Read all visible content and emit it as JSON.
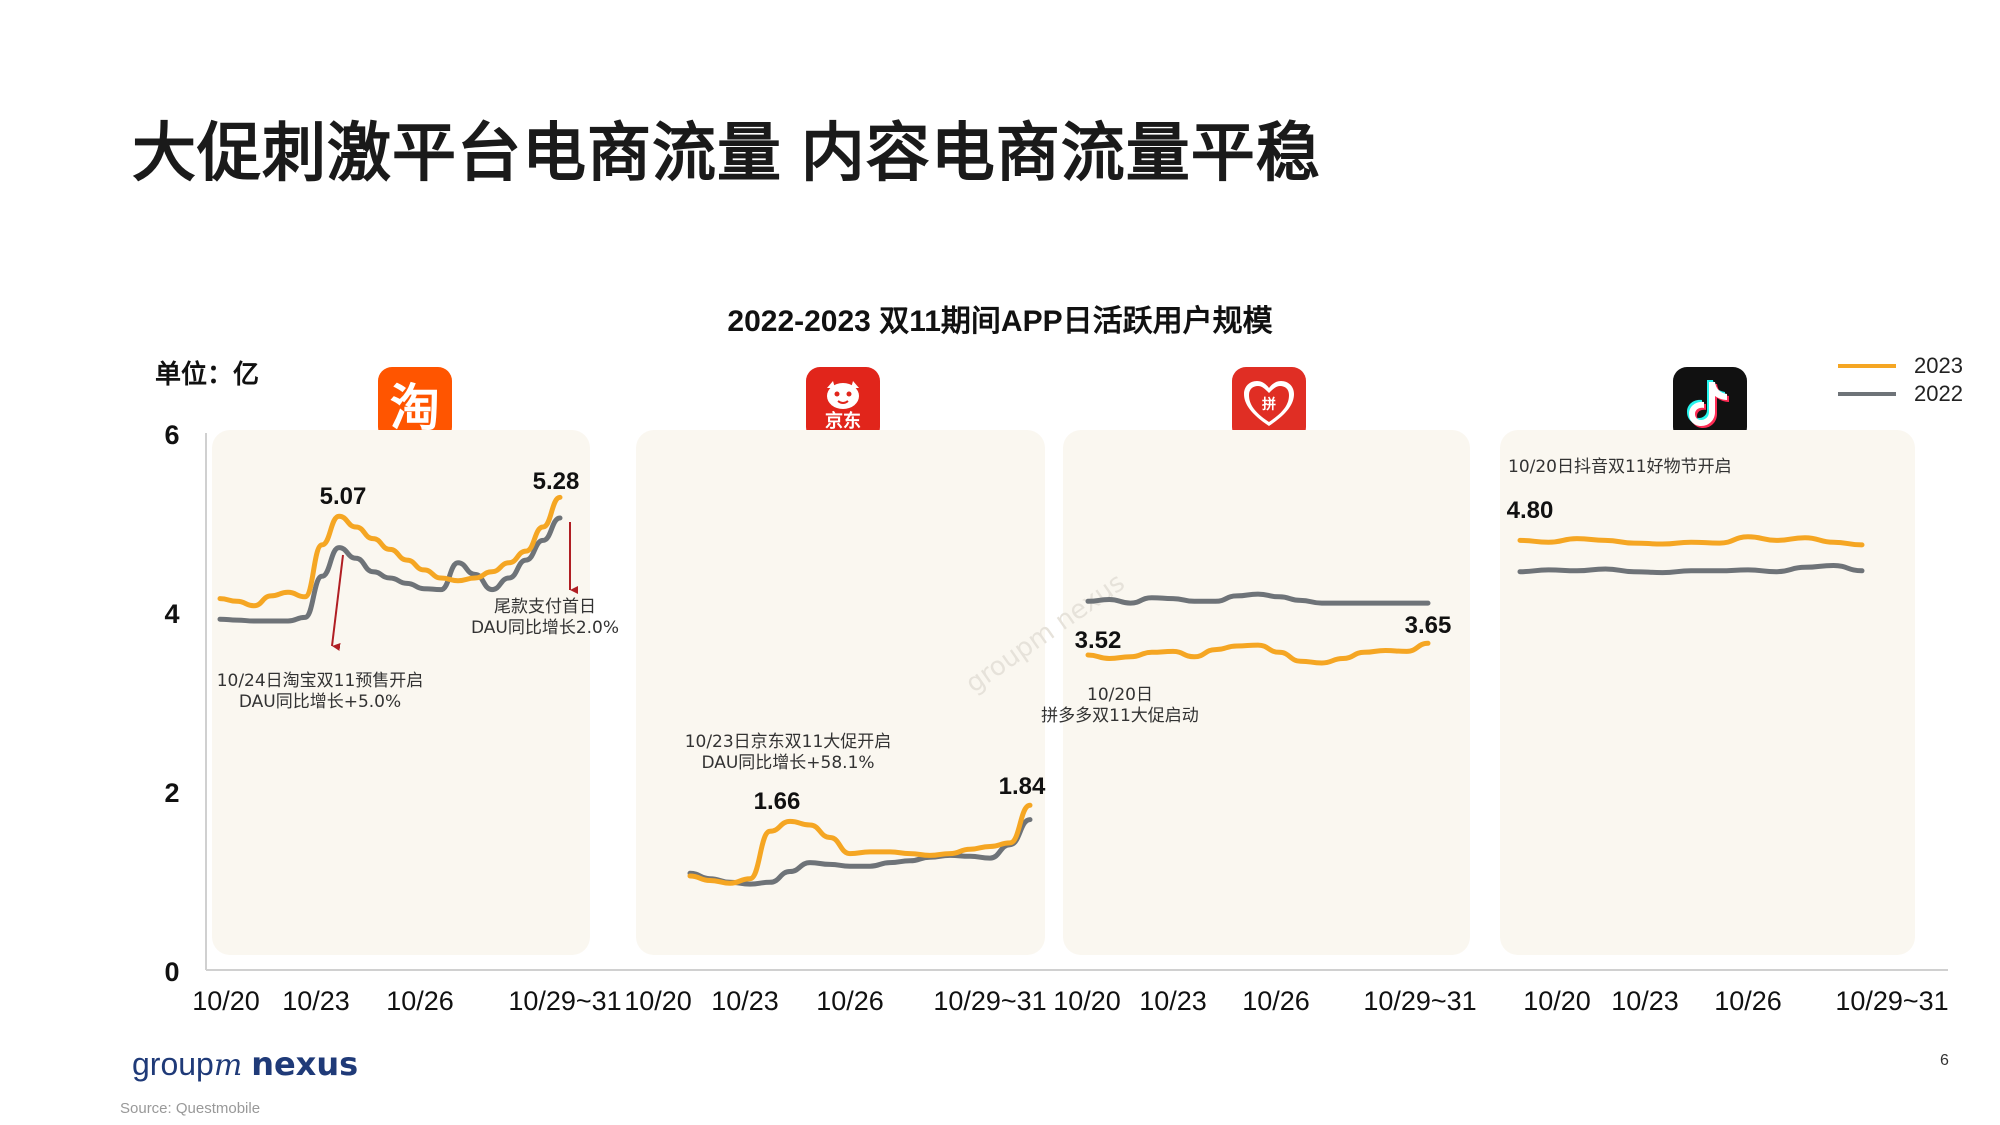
{
  "title": "大促刺激平台电商流量 内容电商流量平稳",
  "chart_title": "2022-2023 双11期间APP日活跃用户规模",
  "unit": "单位：亿",
  "legend": [
    {
      "label": "2023",
      "color": "#F5A623"
    },
    {
      "label": "2022",
      "color": "#6E7378"
    }
  ],
  "footer": {
    "logo_group": "group",
    "logo_m": "m",
    "logo_nexus": "nexus",
    "source": "Source: Questmobile",
    "page_number": "6"
  },
  "icons": [
    {
      "name": "taobao-icon",
      "glyph": "淘",
      "color": "#FF5500"
    },
    {
      "name": "jd-icon",
      "glyph": "京东",
      "color": "#E1251B"
    },
    {
      "name": "pinduoduo-icon",
      "glyph": "拼",
      "color": "#E02E24"
    },
    {
      "name": "douyin-icon",
      "glyph": "♪",
      "color": "#111111"
    }
  ],
  "chart_data": {
    "type": "line",
    "ylim": [
      0,
      6
    ],
    "yticks": [
      0,
      2,
      4,
      6
    ],
    "grid": false,
    "legend_position": "top-right",
    "panels": [
      {
        "app": "淘宝",
        "xticks": [
          "10/20",
          "10/23",
          "10/26",
          "10/29~31"
        ],
        "series": [
          {
            "name": "2023",
            "values": [
              4.15,
              4.12,
              4.07,
              4.18,
              4.22,
              4.17,
              4.75,
              5.07,
              4.95,
              4.82,
              4.7,
              4.58,
              4.47,
              4.38,
              4.35,
              4.38,
              4.45,
              4.55,
              4.68,
              4.95,
              5.28
            ]
          },
          {
            "name": "2022",
            "values": [
              3.92,
              3.91,
              3.9,
              3.9,
              3.9,
              3.94,
              4.4,
              4.72,
              4.6,
              4.45,
              4.38,
              4.32,
              4.26,
              4.25,
              4.55,
              4.42,
              4.25,
              4.38,
              4.58,
              4.8,
              5.05
            ]
          }
        ],
        "labels": [
          {
            "text": "5.07"
          },
          {
            "text": "5.28"
          }
        ],
        "annotations": [
          {
            "text": [
              "10/24日淘宝双11预售开启",
              "DAU同比增长+5.0%"
            ]
          },
          {
            "text": [
              "尾款支付首日",
              "DAU同比增长2.0%"
            ]
          }
        ]
      },
      {
        "app": "京东",
        "xticks": [
          "10/20",
          "10/23",
          "10/26",
          "10/29~31"
        ],
        "series": [
          {
            "name": "2023",
            "values": [
              1.05,
              1.0,
              0.97,
              1.02,
              1.55,
              1.66,
              1.62,
              1.48,
              1.3,
              1.32,
              1.32,
              1.3,
              1.28,
              1.3,
              1.35,
              1.38,
              1.42,
              1.84
            ]
          },
          {
            "name": "2022",
            "values": [
              1.08,
              1.02,
              0.98,
              0.96,
              0.98,
              1.1,
              1.2,
              1.18,
              1.16,
              1.16,
              1.2,
              1.22,
              1.26,
              1.28,
              1.27,
              1.25,
              1.4,
              1.68
            ]
          }
        ],
        "labels": [
          {
            "text": "1.66"
          },
          {
            "text": "1.84"
          }
        ],
        "annotations": [
          {
            "text": [
              "10/23日京东双11大促开启",
              "DAU同比增长+58.1%"
            ]
          }
        ]
      },
      {
        "app": "拼多多",
        "xticks": [
          "10/20",
          "10/23",
          "10/26",
          "10/29~31"
        ],
        "series": [
          {
            "name": "2023",
            "values": [
              3.52,
              3.48,
              3.5,
              3.55,
              3.56,
              3.5,
              3.58,
              3.62,
              3.63,
              3.55,
              3.45,
              3.43,
              3.48,
              3.55,
              3.57,
              3.56,
              3.65
            ]
          },
          {
            "name": "2022",
            "values": [
              4.12,
              4.14,
              4.1,
              4.16,
              4.15,
              4.12,
              4.12,
              4.18,
              4.2,
              4.17,
              4.13,
              4.1,
              4.1,
              4.1,
              4.1,
              4.1,
              4.1
            ]
          }
        ],
        "labels": [
          {
            "text": "3.52"
          },
          {
            "text": "3.65"
          }
        ],
        "annotations": [
          {
            "text": [
              "10/20日",
              "拼多多双11大促启动"
            ]
          }
        ]
      },
      {
        "app": "抖音",
        "xticks": [
          "10/20",
          "10/23",
          "10/26",
          "10/29~31"
        ],
        "series": [
          {
            "name": "2023",
            "values": [
              4.8,
              4.78,
              4.82,
              4.8,
              4.77,
              4.76,
              4.78,
              4.77,
              4.84,
              4.8,
              4.83,
              4.78,
              4.75
            ]
          },
          {
            "name": "2022",
            "values": [
              4.45,
              4.47,
              4.46,
              4.48,
              4.45,
              4.44,
              4.46,
              4.46,
              4.47,
              4.45,
              4.5,
              4.52,
              4.46
            ]
          }
        ],
        "labels": [
          {
            "text": "4.80"
          }
        ],
        "annotations": [
          {
            "text": [
              "10/20日抖音双11好物节开启"
            ]
          }
        ]
      }
    ]
  }
}
